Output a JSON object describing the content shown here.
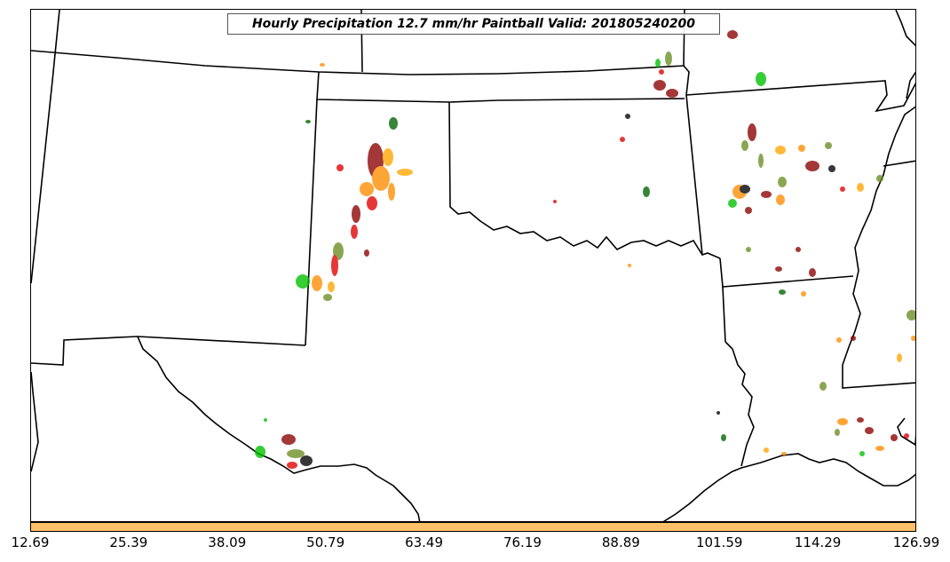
{
  "title": "Hourly Precipitation 12.7 mm/hr Paintball Valid: 201805240200",
  "colorbar": {
    "color": "#fdc068",
    "tick_labels": [
      "12.69",
      "25.39",
      "38.09",
      "50.79",
      "63.49",
      "76.19",
      "88.89",
      "101.59",
      "114.29",
      "126.99"
    ]
  },
  "member_colors": [
    "#e00000",
    "#ff8c00",
    "#ffa500",
    "#00c000",
    "#006400",
    "#8b0000",
    "#6b8e23",
    "#000000"
  ],
  "map": {
    "features": [
      "state-borders",
      "coastline",
      "precipitation-blobs"
    ]
  }
}
